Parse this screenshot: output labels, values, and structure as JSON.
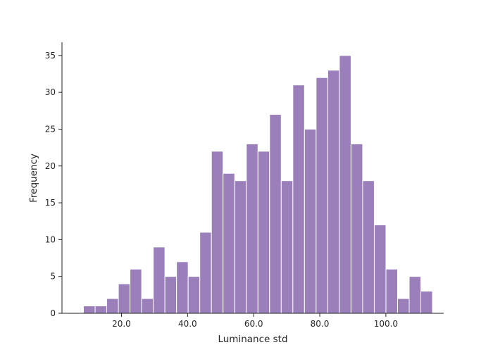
{
  "chart_data": {
    "type": "bar",
    "title": "",
    "xlabel": "Luminance std",
    "ylabel": "Frequency",
    "bar_color": "#9a7fba",
    "grid": false,
    "bin_start": 8.5,
    "bin_width": 3.52,
    "values": [
      1,
      1,
      2,
      4,
      6,
      2,
      9,
      5,
      7,
      5,
      11,
      22,
      19,
      18,
      23,
      22,
      27,
      18,
      31,
      25,
      32,
      33,
      35,
      23,
      18,
      12,
      6,
      2,
      5,
      3
    ],
    "xlim": [
      2.0,
      117.5
    ],
    "ylim": [
      0,
      36.8
    ],
    "xticks": [
      20,
      40,
      60,
      80,
      100
    ],
    "xtick_labels": [
      "20.0",
      "40.0",
      "60.0",
      "80.0",
      "100.0"
    ],
    "yticks": [
      0,
      5,
      10,
      15,
      20,
      25,
      30,
      35
    ],
    "ytick_labels": [
      "0",
      "5",
      "10",
      "15",
      "20",
      "25",
      "30",
      "35"
    ]
  }
}
